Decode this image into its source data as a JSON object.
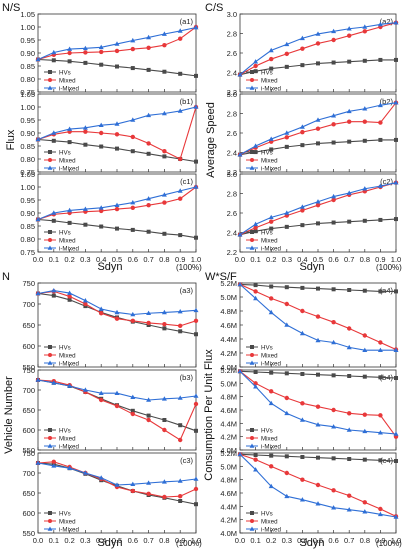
{
  "figure": {
    "quadrants": [
      {
        "id": "ns",
        "heading": "N/S",
        "ylabel": "Flux"
      },
      {
        "id": "cs",
        "heading": "C/S",
        "ylabel": "Average Speed"
      },
      {
        "id": "n",
        "heading": "N",
        "ylabel": "Vehicle Number"
      },
      {
        "id": "wsf",
        "heading": "W*S/F",
        "ylabel": "Consumption Per Unit Flux"
      }
    ],
    "xlabel": "Sdyn",
    "x_unit_note": "(100%)"
  },
  "series_styles": [
    {
      "name": "HVs",
      "color": "#4a4a4a",
      "marker": "square"
    },
    {
      "name": "Mixed",
      "color": "#e8383a",
      "marker": "circle"
    },
    {
      "name": "i-Mixed",
      "color": "#2f6fd6",
      "marker": "triangle"
    }
  ],
  "chart_data": [
    {
      "type": "line",
      "quadrant": 0,
      "panel_label": "(a1)",
      "ylim": [
        0.75,
        1.05
      ],
      "yticks": [
        "0.75",
        "0.80",
        "0.85",
        "0.90",
        "0.95",
        "1.00",
        "1.05"
      ],
      "x": [
        0,
        0.1,
        0.2,
        0.3,
        0.4,
        0.5,
        0.6,
        0.7,
        0.8,
        0.9,
        1.0
      ],
      "xticks": [
        "0.0",
        "0.1",
        "0.2",
        "0.3",
        "0.4",
        "0.5",
        "0.6",
        "0.7",
        "0.8",
        "0.9",
        "1.0"
      ],
      "series": [
        {
          "name": "HVs",
          "values": [
            0.875,
            0.872,
            0.868,
            0.862,
            0.855,
            0.848,
            0.842,
            0.835,
            0.828,
            0.82,
            0.812
          ]
        },
        {
          "name": "Mixed",
          "values": [
            0.875,
            0.893,
            0.9,
            0.902,
            0.904,
            0.908,
            0.915,
            0.92,
            0.93,
            0.955,
            1.0
          ]
        },
        {
          "name": "i-Mixed",
          "values": [
            0.875,
            0.902,
            0.915,
            0.918,
            0.922,
            0.935,
            0.948,
            0.96,
            0.973,
            0.985,
            0.998
          ]
        }
      ]
    },
    {
      "type": "line",
      "quadrant": 0,
      "panel_label": "(b1)",
      "ylim": [
        0.75,
        1.05
      ],
      "yticks": [
        "0.75",
        "0.80",
        "0.85",
        "0.90",
        "0.95",
        "1.00",
        "1.05"
      ],
      "x": [
        0,
        0.1,
        0.2,
        0.3,
        0.4,
        0.5,
        0.6,
        0.7,
        0.8,
        0.9,
        1.0
      ],
      "xticks": [
        "0.0",
        "0.1",
        "0.2",
        "0.3",
        "0.4",
        "0.5",
        "0.6",
        "0.7",
        "0.8",
        "0.9",
        "1.0"
      ],
      "series": [
        {
          "name": "HVs",
          "values": [
            0.875,
            0.87,
            0.865,
            0.855,
            0.848,
            0.84,
            0.83,
            0.82,
            0.81,
            0.8,
            0.79
          ]
        },
        {
          "name": "Mixed",
          "values": [
            0.875,
            0.895,
            0.905,
            0.905,
            0.9,
            0.895,
            0.885,
            0.86,
            0.83,
            0.8,
            1.0
          ]
        },
        {
          "name": "i-Mixed",
          "values": [
            0.875,
            0.9,
            0.915,
            0.92,
            0.93,
            0.935,
            0.95,
            0.968,
            0.975,
            0.985,
            1.0
          ]
        }
      ]
    },
    {
      "type": "line",
      "quadrant": 0,
      "panel_label": "(c1)",
      "ylim": [
        0.75,
        1.05
      ],
      "yticks": [
        "0.75",
        "0.80",
        "0.85",
        "0.90",
        "0.95",
        "1.00",
        "1.05"
      ],
      "x": [
        0,
        0.1,
        0.2,
        0.3,
        0.4,
        0.5,
        0.6,
        0.7,
        0.8,
        0.9,
        1.0
      ],
      "xticks": [
        "0.0",
        "0.1",
        "0.2",
        "0.3",
        "0.4",
        "0.5",
        "0.6",
        "0.7",
        "0.8",
        "0.9",
        "1.0"
      ],
      "series": [
        {
          "name": "HVs",
          "values": [
            0.875,
            0.87,
            0.862,
            0.855,
            0.848,
            0.84,
            0.835,
            0.828,
            0.82,
            0.815,
            0.805
          ]
        },
        {
          "name": "Mixed",
          "values": [
            0.875,
            0.895,
            0.9,
            0.905,
            0.908,
            0.915,
            0.92,
            0.93,
            0.94,
            0.955,
            1.0
          ]
        },
        {
          "name": "i-Mixed",
          "values": [
            0.875,
            0.9,
            0.91,
            0.915,
            0.92,
            0.93,
            0.94,
            0.955,
            0.97,
            0.985,
            1.0
          ]
        }
      ]
    },
    {
      "type": "line",
      "quadrant": 1,
      "panel_label": "(a2)",
      "ylim": [
        2.2,
        3.1
      ],
      "yticks": [
        "2.2",
        "2.4",
        "2.6",
        "2.8",
        "3.0"
      ],
      "x": [
        0,
        0.1,
        0.2,
        0.3,
        0.4,
        0.5,
        0.6,
        0.7,
        0.8,
        0.9,
        1.0
      ],
      "xticks": [
        "0.0",
        "0.1",
        "0.2",
        "0.3",
        "0.4",
        "0.5",
        "0.6",
        "0.7",
        "0.8",
        "0.9",
        "1.0"
      ],
      "series": [
        {
          "name": "HVs",
          "values": [
            2.4,
            2.44,
            2.47,
            2.49,
            2.51,
            2.53,
            2.54,
            2.55,
            2.56,
            2.57,
            2.57
          ]
        },
        {
          "name": "Mixed",
          "values": [
            2.4,
            2.5,
            2.58,
            2.64,
            2.7,
            2.76,
            2.8,
            2.85,
            2.9,
            2.95,
            3.0
          ]
        },
        {
          "name": "i-Mixed",
          "values": [
            2.4,
            2.55,
            2.68,
            2.75,
            2.82,
            2.87,
            2.9,
            2.93,
            2.95,
            2.98,
            3.0
          ]
        }
      ]
    },
    {
      "type": "line",
      "quadrant": 1,
      "panel_label": "(b2)",
      "ylim": [
        2.2,
        3.1
      ],
      "yticks": [
        "2.2",
        "2.4",
        "2.6",
        "2.8",
        "3.0"
      ],
      "x": [
        0,
        0.1,
        0.2,
        0.3,
        0.4,
        0.5,
        0.6,
        0.7,
        0.8,
        0.9,
        1.0
      ],
      "xticks": [
        "0.0",
        "0.1",
        "0.2",
        "0.3",
        "0.4",
        "0.5",
        "0.6",
        "0.7",
        "0.8",
        "0.9",
        "1.0"
      ],
      "series": [
        {
          "name": "HVs",
          "values": [
            2.4,
            2.43,
            2.46,
            2.49,
            2.51,
            2.53,
            2.54,
            2.55,
            2.56,
            2.57,
            2.57
          ]
        },
        {
          "name": "Mixed",
          "values": [
            2.4,
            2.48,
            2.55,
            2.6,
            2.66,
            2.7,
            2.75,
            2.78,
            2.78,
            2.77,
            3.0
          ]
        },
        {
          "name": "i-Mixed",
          "values": [
            2.4,
            2.5,
            2.58,
            2.65,
            2.72,
            2.8,
            2.85,
            2.9,
            2.93,
            2.97,
            3.0
          ]
        }
      ]
    },
    {
      "type": "line",
      "quadrant": 1,
      "panel_label": "(c2)",
      "ylim": [
        2.2,
        3.1
      ],
      "yticks": [
        "2.2",
        "2.4",
        "2.6",
        "2.8",
        "3.0"
      ],
      "x": [
        0,
        0.1,
        0.2,
        0.3,
        0.4,
        0.5,
        0.6,
        0.7,
        0.8,
        0.9,
        1.0
      ],
      "xticks": [
        "0.0",
        "0.1",
        "0.2",
        "0.3",
        "0.4",
        "0.5",
        "0.6",
        "0.7",
        "0.8",
        "0.9",
        "1.0"
      ],
      "series": [
        {
          "name": "HVs",
          "values": [
            2.4,
            2.44,
            2.47,
            2.49,
            2.51,
            2.53,
            2.54,
            2.55,
            2.56,
            2.57,
            2.58
          ]
        },
        {
          "name": "Mixed",
          "values": [
            2.4,
            2.48,
            2.55,
            2.62,
            2.68,
            2.74,
            2.8,
            2.86,
            2.9,
            2.95,
            3.0
          ]
        },
        {
          "name": "i-Mixed",
          "values": [
            2.4,
            2.52,
            2.6,
            2.65,
            2.72,
            2.78,
            2.84,
            2.88,
            2.93,
            2.96,
            3.0
          ]
        }
      ]
    },
    {
      "type": "line",
      "quadrant": 2,
      "panel_label": "(a3)",
      "ylim": [
        550,
        750
      ],
      "yticks": [
        "550",
        "600",
        "650",
        "700",
        "750"
      ],
      "x": [
        0,
        0.1,
        0.2,
        0.3,
        0.4,
        0.5,
        0.6,
        0.7,
        0.8,
        0.9,
        1.0
      ],
      "xticks": [
        "0.0",
        "0.1",
        "0.2",
        "0.3",
        "0.4",
        "0.5",
        "0.6",
        "0.7",
        "0.8",
        "0.9",
        "1.0"
      ],
      "series": [
        {
          "name": "HVs",
          "values": [
            725,
            720,
            710,
            695,
            680,
            668,
            658,
            650,
            642,
            635,
            628
          ]
        },
        {
          "name": "Mixed",
          "values": [
            725,
            730,
            718,
            700,
            678,
            665,
            660,
            655,
            652,
            648,
            660
          ]
        },
        {
          "name": "i-Mixed",
          "values": [
            725,
            732,
            726,
            708,
            688,
            680,
            675,
            678,
            680,
            682,
            685
          ]
        }
      ]
    },
    {
      "type": "line",
      "quadrant": 2,
      "panel_label": "(b3)",
      "ylim": [
        550,
        750
      ],
      "yticks": [
        "550",
        "600",
        "650",
        "700",
        "750"
      ],
      "x": [
        0,
        0.1,
        0.2,
        0.3,
        0.4,
        0.5,
        0.6,
        0.7,
        0.8,
        0.9,
        1.0
      ],
      "xticks": [
        "0.0",
        "0.1",
        "0.2",
        "0.3",
        "0.4",
        "0.5",
        "0.6",
        "0.7",
        "0.8",
        "0.9",
        "1.0"
      ],
      "series": [
        {
          "name": "HVs",
          "values": [
            725,
            718,
            710,
            695,
            678,
            662,
            648,
            636,
            625,
            612,
            598
          ]
        },
        {
          "name": "Mixed",
          "values": [
            725,
            722,
            712,
            695,
            675,
            660,
            640,
            625,
            600,
            575,
            665
          ]
        },
        {
          "name": "i-Mixed",
          "values": [
            725,
            718,
            710,
            700,
            692,
            692,
            682,
            675,
            678,
            680,
            685
          ]
        }
      ]
    },
    {
      "type": "line",
      "quadrant": 2,
      "panel_label": "(c3)",
      "ylim": [
        550,
        750
      ],
      "yticks": [
        "550",
        "600",
        "650",
        "700",
        "750"
      ],
      "x": [
        0,
        0.1,
        0.2,
        0.3,
        0.4,
        0.5,
        0.6,
        0.7,
        0.8,
        0.9,
        1.0
      ],
      "xticks": [
        "0.0",
        "0.1",
        "0.2",
        "0.3",
        "0.4",
        "0.5",
        "0.6",
        "0.7",
        "0.8",
        "0.9",
        "1.0"
      ],
      "series": [
        {
          "name": "HVs",
          "values": [
            725,
            722,
            712,
            698,
            682,
            668,
            655,
            645,
            638,
            630,
            622
          ]
        },
        {
          "name": "Mixed",
          "values": [
            725,
            728,
            715,
            700,
            685,
            665,
            655,
            648,
            640,
            642,
            660
          ]
        },
        {
          "name": "i-Mixed",
          "values": [
            725,
            718,
            712,
            700,
            688,
            670,
            672,
            675,
            678,
            680,
            685
          ]
        }
      ]
    },
    {
      "type": "line",
      "quadrant": 3,
      "panel_label": "(a4)",
      "ylim": [
        4.0,
        5.2
      ],
      "yticks": [
        "4.0M",
        "4.2M",
        "4.4M",
        "4.6M",
        "4.8M",
        "5.0M",
        "5.2M"
      ],
      "x": [
        0,
        0.1,
        0.2,
        0.3,
        0.4,
        0.5,
        0.6,
        0.7,
        0.8,
        0.9,
        1.0
      ],
      "xticks": [
        "0.0",
        "0.1",
        "0.2",
        "0.3",
        "0.4",
        "0.5",
        "0.6",
        "0.7",
        "0.8",
        "0.9",
        "1.0"
      ],
      "series": [
        {
          "name": "HVs",
          "values": [
            5.18,
            5.17,
            5.15,
            5.14,
            5.13,
            5.12,
            5.11,
            5.1,
            5.09,
            5.08,
            5.08
          ]
        },
        {
          "name": "Mixed",
          "values": [
            5.18,
            5.08,
            4.98,
            4.9,
            4.8,
            4.72,
            4.64,
            4.55,
            4.45,
            4.35,
            4.25
          ]
        },
        {
          "name": "i-Mixed",
          "values": [
            5.18,
            4.98,
            4.78,
            4.6,
            4.48,
            4.38,
            4.35,
            4.28,
            4.24,
            4.24,
            4.24
          ]
        }
      ]
    },
    {
      "type": "line",
      "quadrant": 3,
      "panel_label": "(b4)",
      "ylim": [
        4.0,
        5.2
      ],
      "yticks": [
        "4.0M",
        "4.2M",
        "4.4M",
        "4.6M",
        "4.8M",
        "5.0M",
        "5.2M"
      ],
      "x": [
        0,
        0.1,
        0.2,
        0.3,
        0.4,
        0.5,
        0.6,
        0.7,
        0.8,
        0.9,
        1.0
      ],
      "xticks": [
        "0.0",
        "0.1",
        "0.2",
        "0.3",
        "0.4",
        "0.5",
        "0.6",
        "0.7",
        "0.8",
        "0.9",
        "1.0"
      ],
      "series": [
        {
          "name": "HVs",
          "values": [
            5.18,
            5.17,
            5.16,
            5.15,
            5.14,
            5.13,
            5.12,
            5.11,
            5.1,
            5.09,
            5.08
          ]
        },
        {
          "name": "Mixed",
          "values": [
            5.18,
            5.0,
            4.88,
            4.78,
            4.7,
            4.65,
            4.6,
            4.55,
            4.53,
            4.52,
            4.2
          ]
        },
        {
          "name": "i-Mixed",
          "values": [
            5.18,
            4.95,
            4.7,
            4.55,
            4.45,
            4.38,
            4.35,
            4.3,
            4.28,
            4.26,
            4.24
          ]
        }
      ]
    },
    {
      "type": "line",
      "quadrant": 3,
      "panel_label": "(c4)",
      "ylim": [
        4.0,
        5.2
      ],
      "yticks": [
        "4.0M",
        "4.2M",
        "4.4M",
        "4.6M",
        "4.8M",
        "5.0M",
        "5.2M"
      ],
      "x": [
        0,
        0.1,
        0.2,
        0.3,
        0.4,
        0.5,
        0.6,
        0.7,
        0.8,
        0.9,
        1.0
      ],
      "xticks": [
        "0.0",
        "0.1",
        "0.2",
        "0.3",
        "0.4",
        "0.5",
        "0.6",
        "0.7",
        "0.8",
        "0.9",
        "1.0"
      ],
      "series": [
        {
          "name": "HVs",
          "values": [
            5.18,
            5.17,
            5.16,
            5.15,
            5.14,
            5.13,
            5.12,
            5.11,
            5.1,
            5.09,
            5.08
          ]
        },
        {
          "name": "Mixed",
          "values": [
            5.18,
            5.1,
            5.0,
            4.9,
            4.8,
            4.72,
            4.64,
            4.56,
            4.46,
            4.36,
            4.25
          ]
        },
        {
          "name": "i-Mixed",
          "values": [
            5.18,
            4.95,
            4.7,
            4.55,
            4.5,
            4.44,
            4.38,
            4.35,
            4.32,
            4.28,
            4.24
          ]
        }
      ]
    }
  ]
}
